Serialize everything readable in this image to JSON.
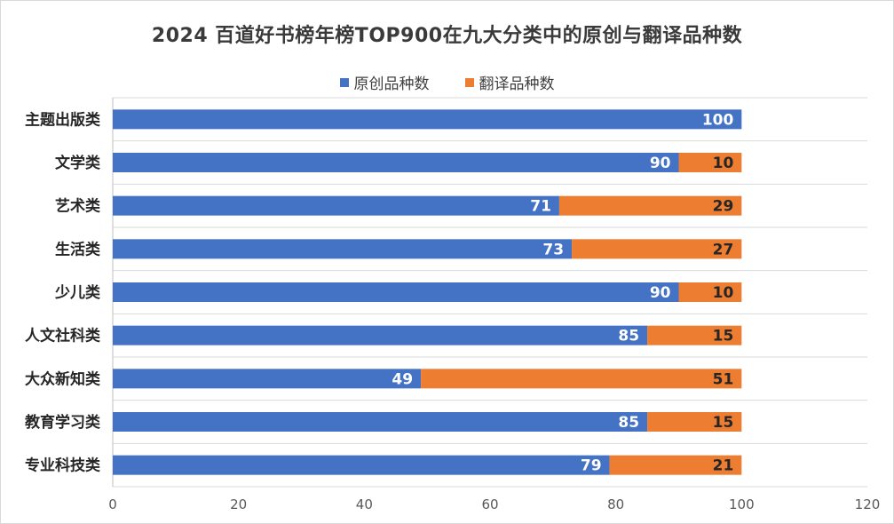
{
  "chart_data": {
    "type": "bar",
    "orientation": "horizontal",
    "stacked": true,
    "title": "2024 百道好书榜年榜TOP900在九大分类中的原创与翻译品种数",
    "categories": [
      "主题出版类",
      "文学类",
      "艺术类",
      "生活类",
      "少儿类",
      "人文社科类",
      "大众新知类",
      "教育学习类",
      "专业科技类"
    ],
    "series": [
      {
        "name": "原创品种数",
        "color": "#4472c4",
        "values": [
          100,
          90,
          71,
          73,
          90,
          85,
          49,
          85,
          79
        ]
      },
      {
        "name": "翻译品种数",
        "color": "#ed7d31",
        "values": [
          0,
          10,
          29,
          27,
          10,
          15,
          51,
          15,
          21
        ]
      }
    ],
    "xlim": [
      0,
      120
    ],
    "xticks": [
      0,
      20,
      40,
      60,
      80,
      100,
      120
    ],
    "xlabel": "",
    "ylabel": "",
    "grid": "horizontal",
    "legend": "top"
  }
}
